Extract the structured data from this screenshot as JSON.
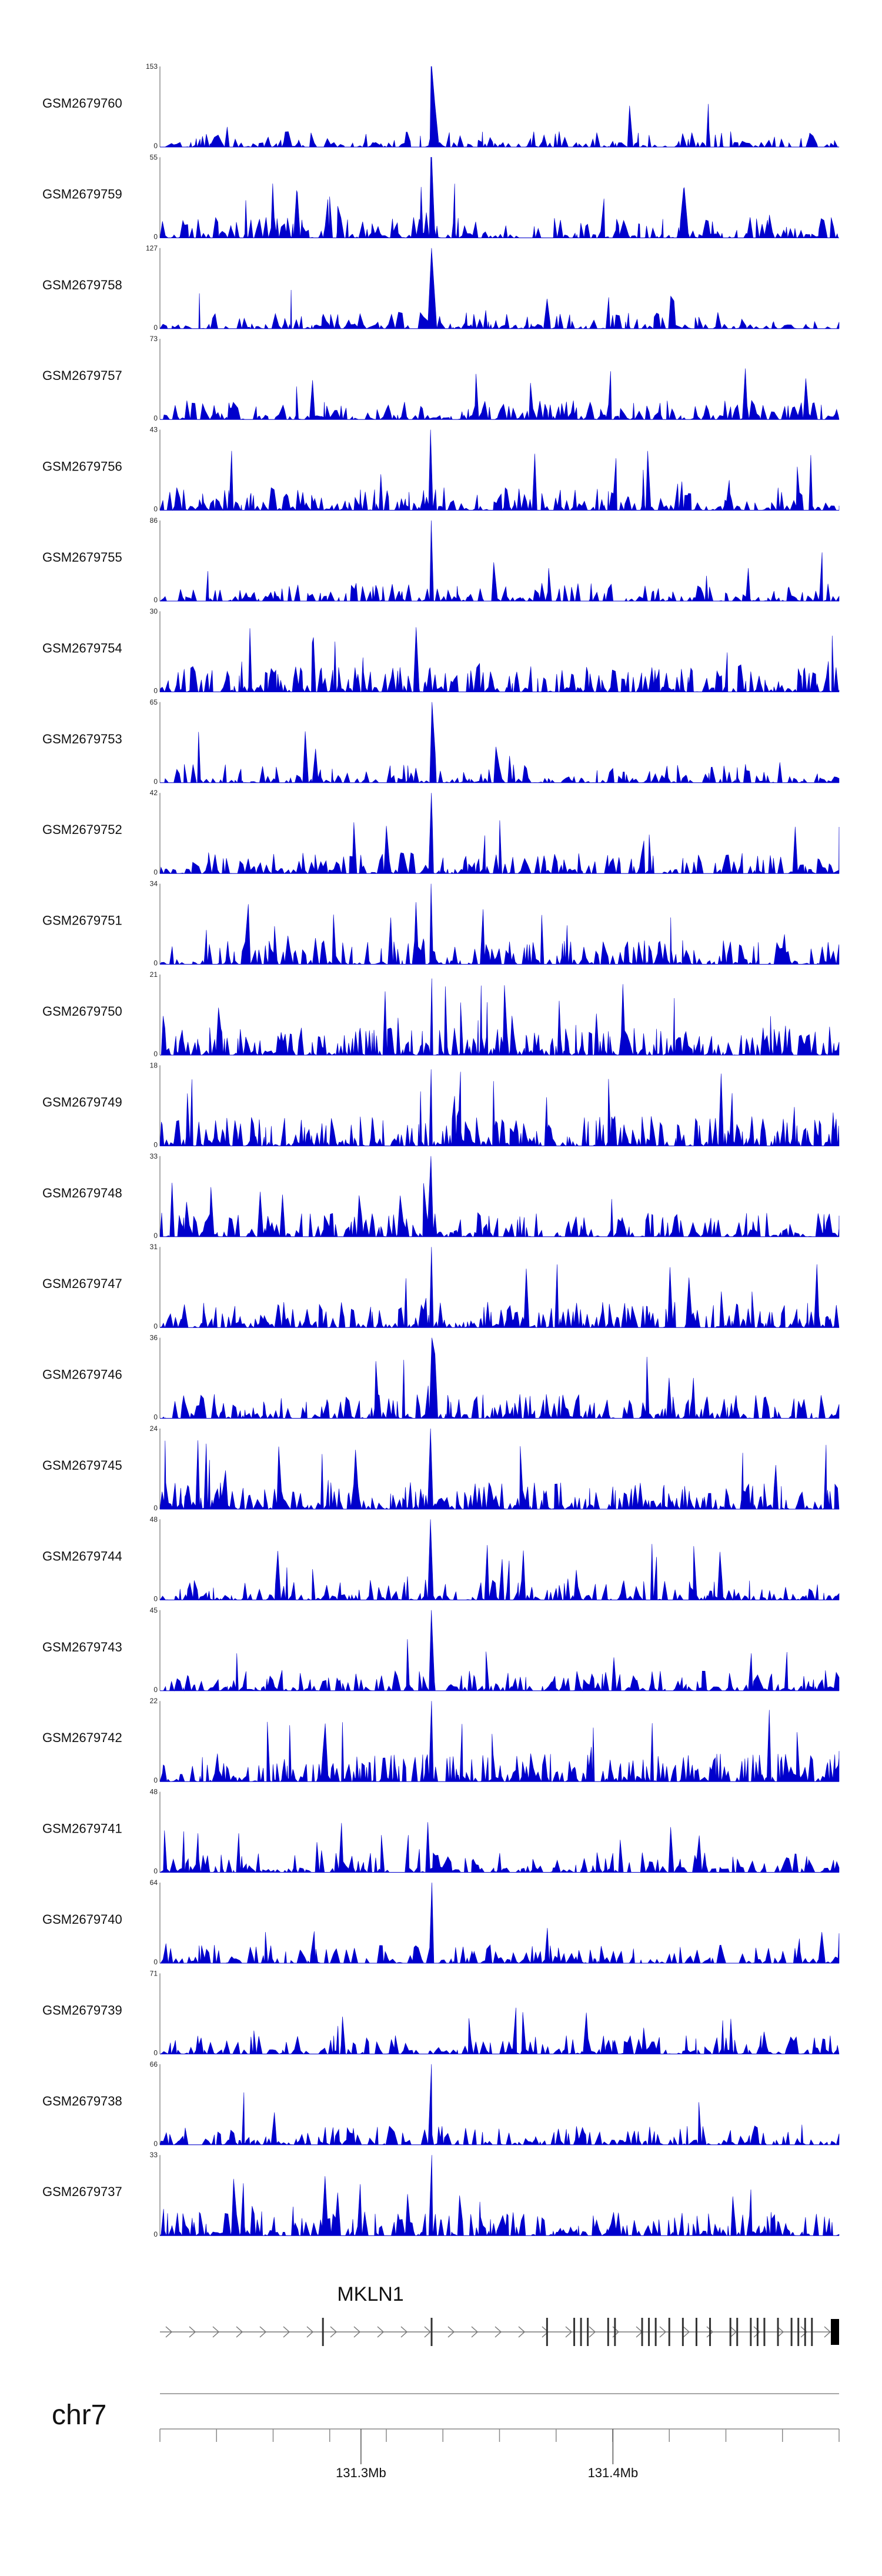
{
  "chart_data": {
    "type": "area",
    "color": "#0000cc",
    "tracks": [
      {
        "name": "GSM2679760",
        "ymax": 153,
        "ymin": 0,
        "peak": 1.0,
        "density": 0.1
      },
      {
        "name": "GSM2679759",
        "ymax": 55,
        "ymin": 0,
        "peak": 1.0,
        "density": 0.3
      },
      {
        "name": "GSM2679758",
        "ymax": 127,
        "ymin": 0,
        "peak": 1.0,
        "density": 0.14
      },
      {
        "name": "GSM2679757",
        "ymax": 73,
        "ymin": 0,
        "peak": 1.0,
        "density": 0.22
      },
      {
        "name": "GSM2679756",
        "ymax": 43,
        "ymin": 0,
        "peak": 1.0,
        "density": 0.35
      },
      {
        "name": "GSM2679755",
        "ymax": 86,
        "ymin": 0,
        "peak": 1.0,
        "density": 0.18
      },
      {
        "name": "GSM2679754",
        "ymax": 30,
        "ymin": 0,
        "peak": 1.0,
        "density": 0.45
      },
      {
        "name": "GSM2679753",
        "ymax": 65,
        "ymin": 0,
        "peak": 1.0,
        "density": 0.2
      },
      {
        "name": "GSM2679752",
        "ymax": 42,
        "ymin": 0,
        "peak": 1.0,
        "density": 0.3
      },
      {
        "name": "GSM2679751",
        "ymax": 34,
        "ymin": 0,
        "peak": 1.0,
        "density": 0.4
      },
      {
        "name": "GSM2679750",
        "ymax": 21,
        "ymin": 0,
        "peak": 0.95,
        "density": 0.55
      },
      {
        "name": "GSM2679749",
        "ymax": 18,
        "ymin": 0,
        "peak": 0.95,
        "density": 0.6
      },
      {
        "name": "GSM2679748",
        "ymax": 33,
        "ymin": 0,
        "peak": 1.0,
        "density": 0.4
      },
      {
        "name": "GSM2679747",
        "ymax": 31,
        "ymin": 0,
        "peak": 1.0,
        "density": 0.45
      },
      {
        "name": "GSM2679746",
        "ymax": 36,
        "ymin": 0,
        "peak": 1.0,
        "density": 0.4
      },
      {
        "name": "GSM2679745",
        "ymax": 24,
        "ymin": 0,
        "peak": 1.0,
        "density": 0.5
      },
      {
        "name": "GSM2679744",
        "ymax": 48,
        "ymin": 0,
        "peak": 1.0,
        "density": 0.28
      },
      {
        "name": "GSM2679743",
        "ymax": 45,
        "ymin": 0,
        "peak": 1.0,
        "density": 0.28
      },
      {
        "name": "GSM2679742",
        "ymax": 22,
        "ymin": 0,
        "peak": 1.0,
        "density": 0.55
      },
      {
        "name": "GSM2679741",
        "ymax": 48,
        "ymin": 0,
        "peak": 1.0,
        "density": 0.25
      },
      {
        "name": "GSM2679740",
        "ymax": 64,
        "ymin": 0,
        "peak": 1.0,
        "density": 0.2
      },
      {
        "name": "GSM2679739",
        "ymax": 71,
        "ymin": 0,
        "peak": 1.0,
        "density": 0.2
      },
      {
        "name": "GSM2679738",
        "ymax": 66,
        "ymin": 0,
        "peak": 1.0,
        "density": 0.22
      },
      {
        "name": "GSM2679737",
        "ymax": 33,
        "ymin": 0,
        "peak": 1.0,
        "density": 0.4
      }
    ],
    "gene": {
      "name": "MKLN1",
      "strand": "+",
      "exons_frac": [
        0.24,
        0.4,
        0.57,
        0.61,
        0.62,
        0.63,
        0.66,
        0.67,
        0.71,
        0.72,
        0.73,
        0.75,
        0.77,
        0.79,
        0.81,
        0.84,
        0.85,
        0.87,
        0.88,
        0.89,
        0.91,
        0.93,
        0.94,
        0.95,
        0.96
      ]
    },
    "chromosome": "chr7",
    "x_axis": {
      "ticks": [
        {
          "label": "131.3Mb",
          "frac": 0.296
        },
        {
          "label": "131.4Mb",
          "frac": 0.667
        }
      ]
    }
  }
}
